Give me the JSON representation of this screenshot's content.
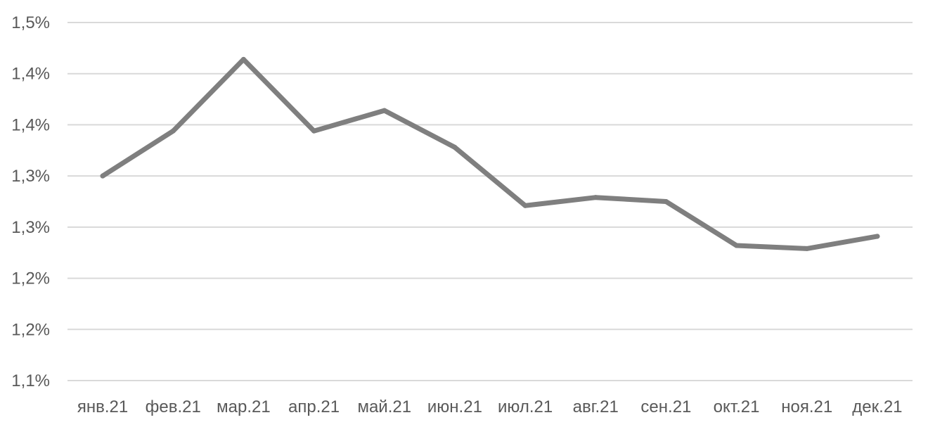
{
  "chart_data": {
    "type": "line",
    "title": "",
    "xlabel": "",
    "ylabel": "",
    "categories": [
      "янв.21",
      "фев.21",
      "мар.21",
      "апр.21",
      "май.21",
      "июн.21",
      "июл.21",
      "авг.21",
      "сен.21",
      "окт.21",
      "ноя.21",
      "дек.21"
    ],
    "y_ticks": [
      {
        "value": 1.1,
        "label": "1,1%"
      },
      {
        "value": 1.15,
        "label": "1,2%"
      },
      {
        "value": 1.2,
        "label": "1,2%"
      },
      {
        "value": 1.25,
        "label": "1,3%"
      },
      {
        "value": 1.3,
        "label": "1,3%"
      },
      {
        "value": 1.35,
        "label": "1,4%"
      },
      {
        "value": 1.4,
        "label": "1,4%"
      },
      {
        "value": 1.45,
        "label": "1,5%"
      }
    ],
    "ylim": [
      1.1,
      1.45
    ],
    "grid": true,
    "legend": "none",
    "series": [
      {
        "color": "#7f7f7f",
        "values": [
          1.3,
          1.344,
          1.414,
          1.344,
          1.364,
          1.328,
          1.271,
          1.279,
          1.275,
          1.232,
          1.229,
          1.241
        ]
      }
    ]
  }
}
